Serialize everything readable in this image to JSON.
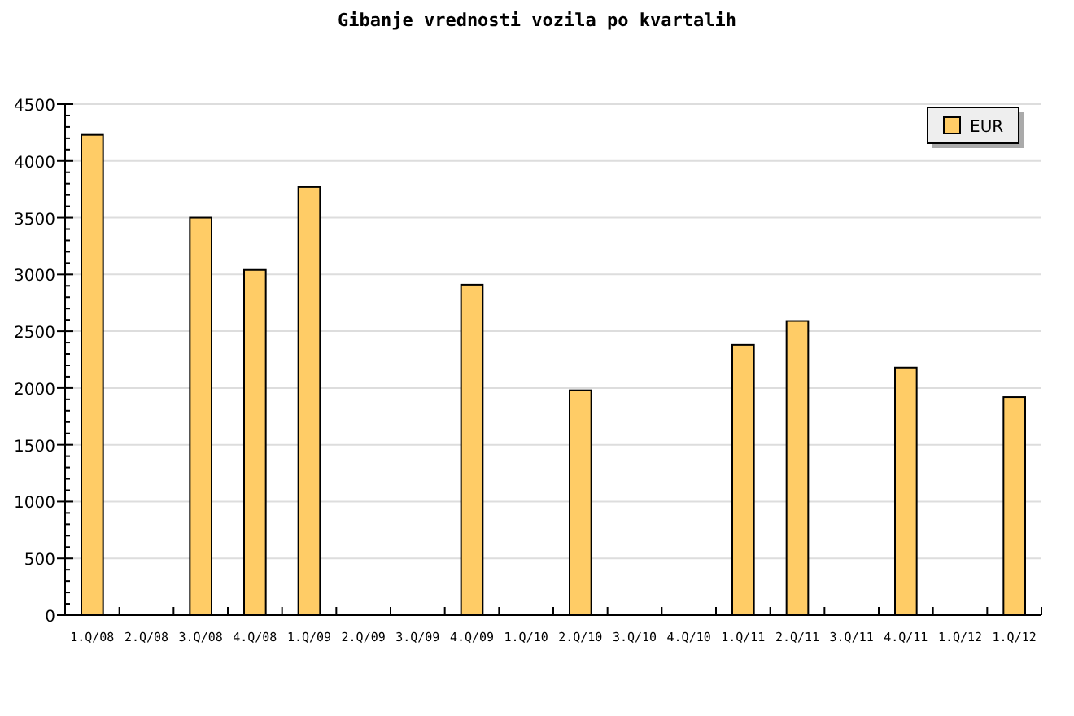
{
  "chart_data": {
    "type": "bar",
    "title": "Gibanje vrednosti vozila po kvartalih",
    "categories": [
      "1.Q/08",
      "2.Q/08",
      "3.Q/08",
      "4.Q/08",
      "1.Q/09",
      "2.Q/09",
      "3.Q/09",
      "4.Q/09",
      "1.Q/10",
      "2.Q/10",
      "3.Q/10",
      "4.Q/10",
      "1.Q/11",
      "2.Q/11",
      "3.Q/11",
      "4.Q/11",
      "1.Q/12",
      "1.Q/12"
    ],
    "series": [
      {
        "name": "EUR",
        "color": "#ffcc66",
        "values": [
          4230,
          null,
          3500,
          3040,
          3770,
          null,
          null,
          2910,
          null,
          1980,
          null,
          null,
          2380,
          2590,
          null,
          2180,
          null,
          1920
        ]
      }
    ],
    "ylim": [
      0,
      4500
    ],
    "yticks": [
      0,
      500,
      1000,
      1500,
      2000,
      2500,
      3000,
      3500,
      4000,
      4500
    ],
    "grid": "y",
    "legend": "top right"
  }
}
